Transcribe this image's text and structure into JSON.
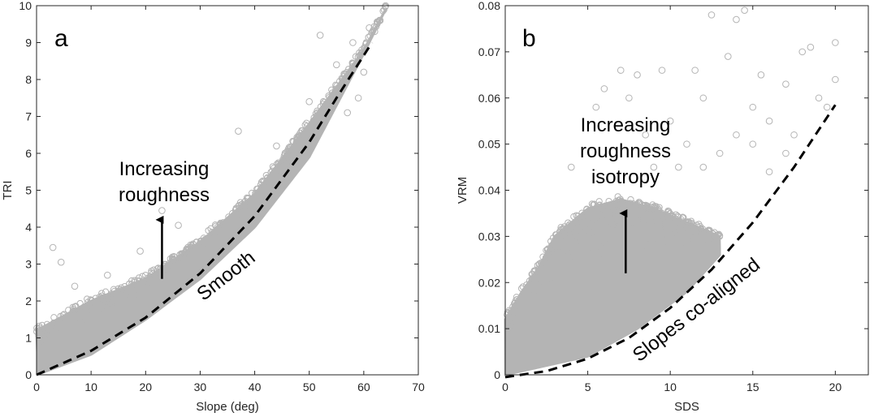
{
  "chart_data": [
    {
      "type": "scatter",
      "panel_label": "a",
      "xlabel": "Slope (deg)",
      "ylabel": "TRI",
      "xlim": [
        0,
        70
      ],
      "ylim": [
        0,
        10
      ],
      "xticks": [
        0,
        10,
        20,
        30,
        40,
        50,
        60,
        70
      ],
      "yticks": [
        0,
        1,
        2,
        3,
        4,
        5,
        6,
        7,
        8,
        9,
        10
      ],
      "marker": "open-circle",
      "marker_color": "#b4b4b4",
      "dense_cloud": {
        "lower_edge": [
          [
            0,
            0
          ],
          [
            10,
            0.55
          ],
          [
            20,
            1.5
          ],
          [
            30,
            2.6
          ],
          [
            40,
            4.0
          ],
          [
            50,
            5.9
          ],
          [
            60,
            8.7
          ],
          [
            62,
            9.3
          ],
          [
            64,
            9.9
          ]
        ],
        "upper_edge": [
          [
            0,
            1.2
          ],
          [
            5,
            1.6
          ],
          [
            10,
            2.0
          ],
          [
            20,
            2.6
          ],
          [
            30,
            3.6
          ],
          [
            40,
            4.9
          ],
          [
            50,
            6.8
          ],
          [
            60,
            8.8
          ],
          [
            64,
            9.9
          ]
        ]
      },
      "sparse_points": [
        [
          3,
          3.45
        ],
        [
          4.5,
          3.05
        ],
        [
          7,
          2.4
        ],
        [
          13,
          2.7
        ],
        [
          19,
          3.35
        ],
        [
          23,
          4.45
        ],
        [
          26,
          4.05
        ],
        [
          37,
          6.6
        ],
        [
          44,
          6.2
        ],
        [
          50,
          7.4
        ],
        [
          52,
          9.2
        ],
        [
          55,
          8.4
        ],
        [
          57,
          7.1
        ],
        [
          58,
          9.0
        ],
        [
          59,
          7.5
        ],
        [
          60,
          8.2
        ],
        [
          61,
          9.4
        ],
        [
          62,
          9.3
        ],
        [
          63,
          9.6
        ],
        [
          64,
          10.0
        ]
      ],
      "boundary_line": {
        "style": "dashed",
        "label": "Smooth",
        "points": [
          [
            0,
            0
          ],
          [
            10,
            0.65
          ],
          [
            20,
            1.55
          ],
          [
            30,
            2.75
          ],
          [
            40,
            4.3
          ],
          [
            50,
            6.3
          ],
          [
            55,
            7.5
          ],
          [
            61.5,
            9.0
          ]
        ]
      },
      "annotation": {
        "lines": [
          "Increasing",
          "roughness"
        ],
        "arrow_x": 23,
        "arrow_from_y": 2.6,
        "arrow_to_y": 4.2
      }
    },
    {
      "type": "scatter",
      "panel_label": "b",
      "xlabel": "SDS",
      "ylabel": "VRM",
      "xlim": [
        0,
        22
      ],
      "ylim": [
        0,
        0.08
      ],
      "xticks": [
        0,
        5,
        10,
        15,
        20
      ],
      "xtick_labels": [
        "0",
        "5",
        "10",
        "15",
        "20"
      ],
      "yticks": [
        0,
        0.01,
        0.02,
        0.03,
        0.04,
        0.05,
        0.06,
        0.07,
        0.08
      ],
      "ytick_labels": [
        "0",
        "0.01",
        "0.02",
        "0.03",
        "0.04",
        "0.05",
        "0.06",
        "0.07",
        "0.08"
      ],
      "marker": "open-circle",
      "marker_color": "#b4b4b4",
      "dense_cloud": {
        "lower_edge": [
          [
            0,
            0
          ],
          [
            5,
            0.004
          ],
          [
            8,
            0.01
          ],
          [
            11,
            0.018
          ],
          [
            13,
            0.026
          ]
        ],
        "upper_edge": [
          [
            0,
            0.012
          ],
          [
            1,
            0.018
          ],
          [
            2,
            0.023
          ],
          [
            3,
            0.03
          ],
          [
            5,
            0.036
          ],
          [
            7,
            0.038
          ],
          [
            9,
            0.036
          ],
          [
            11,
            0.033
          ],
          [
            13,
            0.03
          ]
        ]
      },
      "sparse_points": [
        [
          4,
          0.045
        ],
        [
          5.5,
          0.058
        ],
        [
          6,
          0.062
        ],
        [
          7,
          0.066
        ],
        [
          7.5,
          0.06
        ],
        [
          8,
          0.065
        ],
        [
          9.5,
          0.066
        ],
        [
          10,
          0.055
        ],
        [
          11,
          0.05
        ],
        [
          12,
          0.06
        ],
        [
          12.5,
          0.078
        ],
        [
          13.5,
          0.069
        ],
        [
          14,
          0.077
        ],
        [
          14.5,
          0.079
        ],
        [
          15,
          0.05
        ],
        [
          15.5,
          0.065
        ],
        [
          16,
          0.055
        ],
        [
          17,
          0.063
        ],
        [
          17.5,
          0.052
        ],
        [
          18,
          0.07
        ],
        [
          18.5,
          0.071
        ],
        [
          19,
          0.06
        ],
        [
          19.5,
          0.058
        ],
        [
          20,
          0.072
        ],
        [
          20,
          0.064
        ],
        [
          10.5,
          0.045
        ],
        [
          12,
          0.045
        ],
        [
          13,
          0.048
        ],
        [
          14,
          0.052
        ],
        [
          16,
          0.044
        ],
        [
          17,
          0.048
        ],
        [
          15,
          0.058
        ],
        [
          11.5,
          0.066
        ],
        [
          9,
          0.045
        ],
        [
          8.5,
          0.052
        ]
      ],
      "boundary_line": {
        "style": "dashed",
        "label": "Slopes co-aligned",
        "points": [
          [
            0,
            -0.0005
          ],
          [
            2.5,
            0.0008
          ],
          [
            5,
            0.0035
          ],
          [
            7.5,
            0.008
          ],
          [
            10,
            0.0145
          ],
          [
            12.5,
            0.0228
          ],
          [
            15,
            0.033
          ],
          [
            17.5,
            0.045
          ],
          [
            20,
            0.0585
          ]
        ]
      },
      "annotation": {
        "lines": [
          "Increasing",
          "roughness",
          "isotropy"
        ],
        "arrow_x": 7.3,
        "arrow_from_y": 0.022,
        "arrow_to_y": 0.035
      }
    }
  ]
}
